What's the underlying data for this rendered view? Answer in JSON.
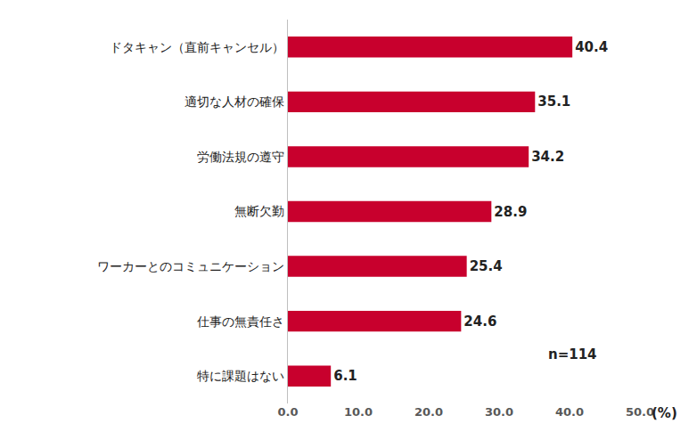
{
  "chart_data": {
    "type": "bar",
    "orientation": "horizontal",
    "categories": [
      "ドタキャン（直前キャンセル）",
      "適切な人材の確保",
      "労働法規の遵守",
      "無断欠勤",
      "ワーカーとのコミュニケーション",
      "仕事の無責任さ",
      "特に課題はない"
    ],
    "values": [
      40.4,
      35.1,
      34.2,
      28.9,
      25.4,
      24.6,
      6.1
    ],
    "color": "#c8002d",
    "data_labels": true,
    "grid": false,
    "xlim": [
      0,
      50
    ],
    "xticks": [
      {
        "value": 0,
        "label": "0.0"
      },
      {
        "value": 10,
        "label": "10.0"
      },
      {
        "value": 20,
        "label": "20.0"
      },
      {
        "value": 30,
        "label": "30.0"
      },
      {
        "value": 40,
        "label": "40.0"
      },
      {
        "value": 50,
        "label": "50.0"
      }
    ],
    "annotations": [
      "n=114",
      "(%)"
    ]
  }
}
